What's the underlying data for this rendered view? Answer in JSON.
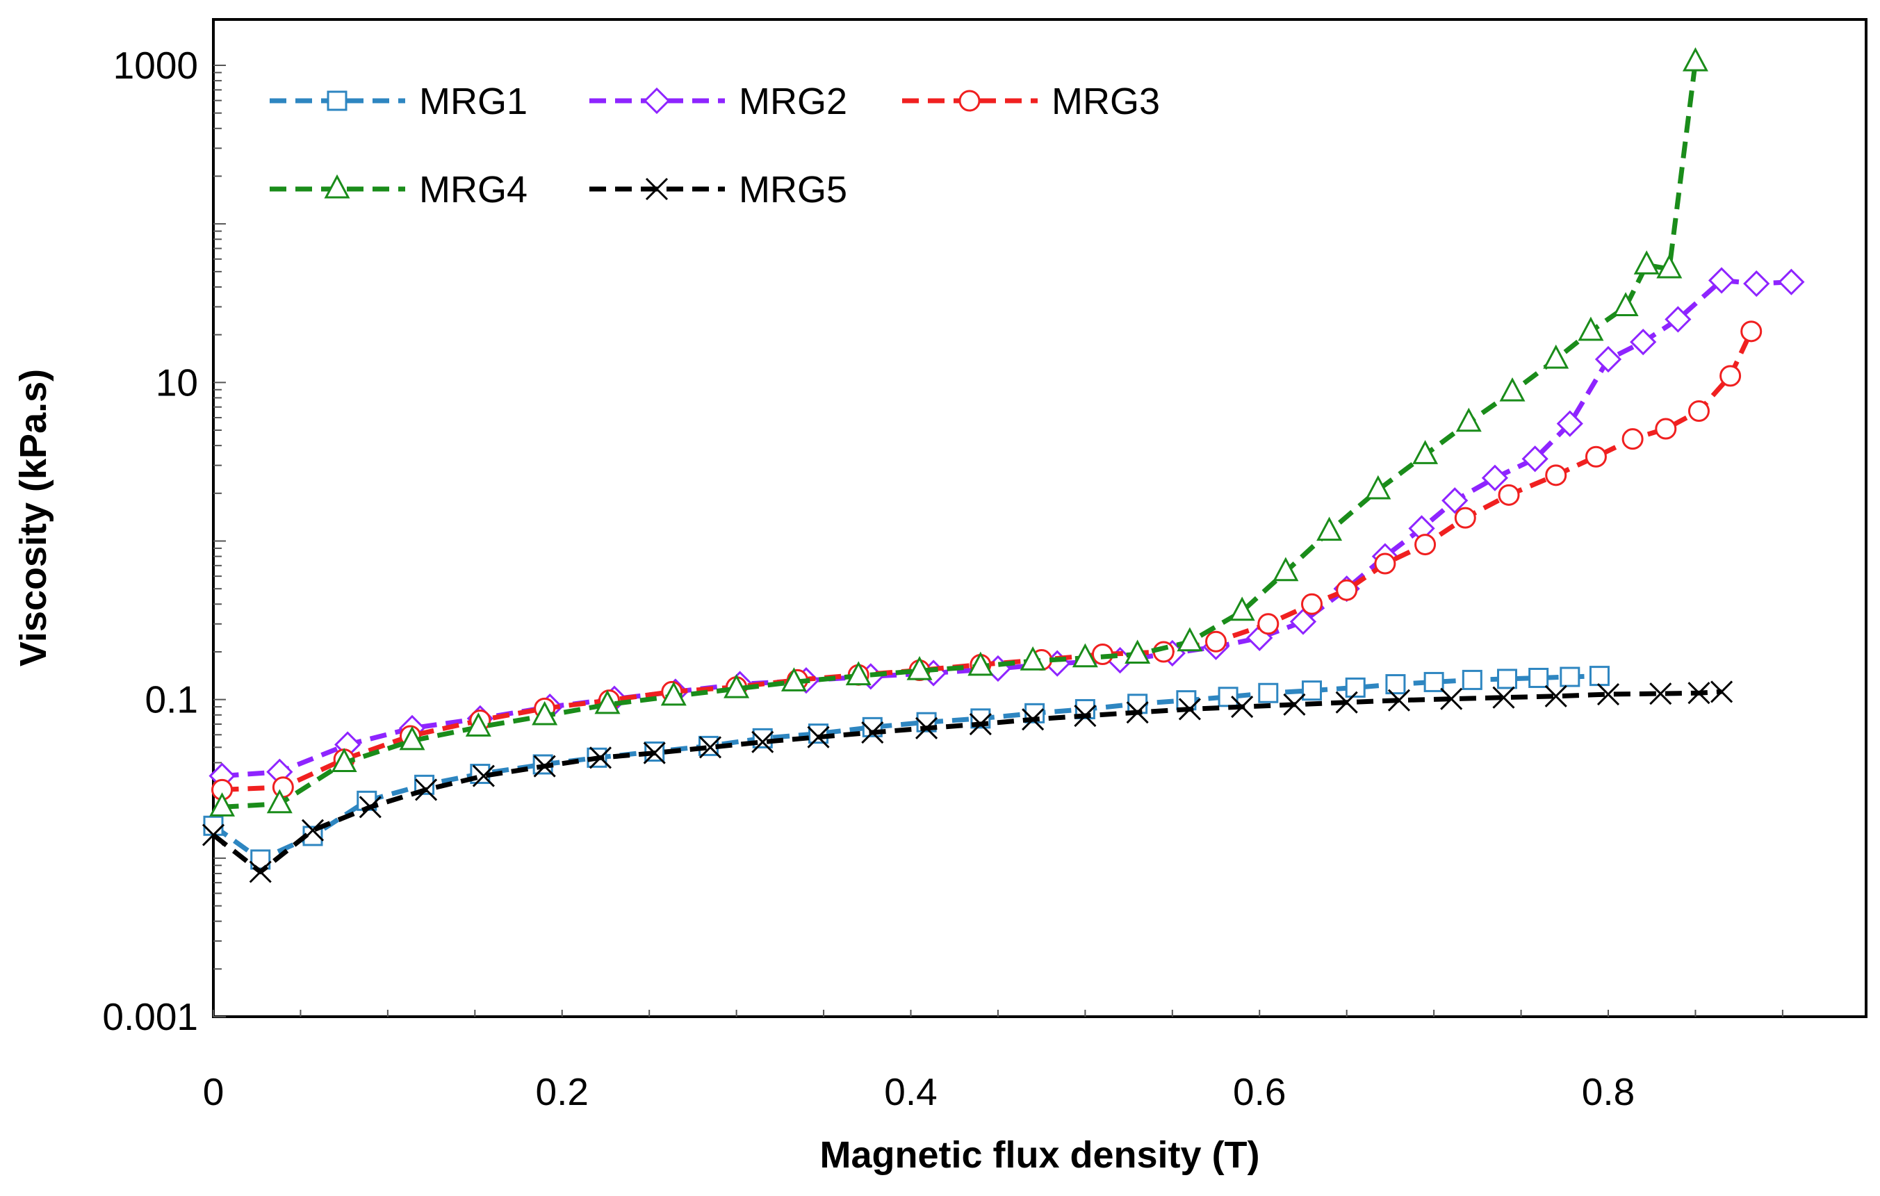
{
  "chart_data": {
    "type": "line",
    "title": "",
    "xlabel": "Magnetic flux density (T)",
    "ylabel": "Viscosity (kPa.s)",
    "xlim": [
      0,
      0.95
    ],
    "ylim": [
      0.001,
      1000
    ],
    "yscale": "log",
    "xticks": [
      0,
      0.2,
      0.4,
      0.6,
      0.8
    ],
    "xtick_labels": [
      "0",
      "0.2",
      "0.4",
      "0.6",
      "0.8"
    ],
    "yticks": [
      0.001,
      0.1,
      10,
      1000
    ],
    "ytick_labels": [
      "0.001",
      "0.1",
      "10",
      "1000"
    ],
    "legend_position": "top-left",
    "series": [
      {
        "name": "MRG1",
        "color": "#2E86C1",
        "marker": "square",
        "x": [
          0.0,
          0.027,
          0.057,
          0.088,
          0.121,
          0.153,
          0.189,
          0.22,
          0.253,
          0.284,
          0.315,
          0.347,
          0.378,
          0.409,
          0.44,
          0.471,
          0.5,
          0.53,
          0.558,
          0.582,
          0.605,
          0.63,
          0.655,
          0.678,
          0.7,
          0.722,
          0.742,
          0.76,
          0.778,
          0.795
        ],
        "y": [
          0.016,
          0.0098,
          0.0138,
          0.023,
          0.029,
          0.034,
          0.039,
          0.043,
          0.047,
          0.051,
          0.057,
          0.061,
          0.067,
          0.072,
          0.076,
          0.082,
          0.087,
          0.094,
          0.099,
          0.104,
          0.11,
          0.114,
          0.119,
          0.125,
          0.129,
          0.133,
          0.135,
          0.137,
          0.139,
          0.141
        ]
      },
      {
        "name": "MRG2",
        "color": "#8E24FF",
        "marker": "diamond",
        "x": [
          0.005,
          0.038,
          0.077,
          0.114,
          0.153,
          0.193,
          0.23,
          0.265,
          0.302,
          0.34,
          0.377,
          0.413,
          0.45,
          0.484,
          0.52,
          0.55,
          0.575,
          0.6,
          0.625,
          0.65,
          0.672,
          0.693,
          0.712,
          0.735,
          0.758,
          0.778,
          0.8,
          0.82,
          0.84,
          0.865,
          0.885,
          0.905
        ],
        "y": [
          0.033,
          0.035,
          0.052,
          0.066,
          0.076,
          0.09,
          0.101,
          0.112,
          0.125,
          0.132,
          0.14,
          0.147,
          0.157,
          0.169,
          0.177,
          0.196,
          0.215,
          0.245,
          0.31,
          0.5,
          0.8,
          1.2,
          1.8,
          2.5,
          3.3,
          5.5,
          14,
          18,
          25,
          44,
          42,
          43
        ]
      },
      {
        "name": "MRG3",
        "color": "#F02020",
        "marker": "circle",
        "x": [
          0.005,
          0.04,
          0.075,
          0.113,
          0.153,
          0.19,
          0.227,
          0.263,
          0.3,
          0.335,
          0.37,
          0.405,
          0.44,
          0.475,
          0.51,
          0.545,
          0.575,
          0.605,
          0.63,
          0.65,
          0.672,
          0.695,
          0.718,
          0.743,
          0.77,
          0.793,
          0.814,
          0.833,
          0.852,
          0.87,
          0.882
        ],
        "y": [
          0.027,
          0.028,
          0.042,
          0.059,
          0.074,
          0.088,
          0.099,
          0.112,
          0.12,
          0.133,
          0.143,
          0.153,
          0.166,
          0.178,
          0.193,
          0.2,
          0.232,
          0.3,
          0.4,
          0.49,
          0.72,
          0.95,
          1.4,
          1.95,
          2.6,
          3.4,
          4.4,
          5.1,
          6.6,
          11,
          21
        ]
      },
      {
        "name": "MRG4",
        "color": "#1A8C1A",
        "marker": "triangle",
        "x": [
          0.005,
          0.038,
          0.075,
          0.114,
          0.152,
          0.19,
          0.226,
          0.264,
          0.3,
          0.333,
          0.37,
          0.405,
          0.44,
          0.47,
          0.5,
          0.53,
          0.56,
          0.59,
          0.615,
          0.64,
          0.668,
          0.695,
          0.72,
          0.745,
          0.77,
          0.79,
          0.81,
          0.822,
          0.835,
          0.85
        ],
        "y": [
          0.021,
          0.022,
          0.04,
          0.055,
          0.067,
          0.079,
          0.093,
          0.105,
          0.117,
          0.129,
          0.141,
          0.152,
          0.162,
          0.175,
          0.183,
          0.193,
          0.231,
          0.36,
          0.64,
          1.15,
          2.1,
          3.5,
          5.6,
          8.7,
          14,
          21,
          30,
          55,
          52,
          1050
        ]
      },
      {
        "name": "MRG5",
        "color": "#000000",
        "marker": "x",
        "x": [
          0.0,
          0.027,
          0.057,
          0.09,
          0.122,
          0.155,
          0.19,
          0.222,
          0.253,
          0.285,
          0.315,
          0.347,
          0.378,
          0.409,
          0.44,
          0.47,
          0.5,
          0.53,
          0.56,
          0.59,
          0.62,
          0.65,
          0.68,
          0.71,
          0.74,
          0.77,
          0.8,
          0.83,
          0.852,
          0.865
        ],
        "y": [
          0.014,
          0.0082,
          0.015,
          0.021,
          0.027,
          0.033,
          0.038,
          0.043,
          0.046,
          0.05,
          0.054,
          0.058,
          0.062,
          0.066,
          0.07,
          0.075,
          0.079,
          0.083,
          0.087,
          0.09,
          0.093,
          0.096,
          0.099,
          0.101,
          0.103,
          0.105,
          0.108,
          0.109,
          0.11,
          0.112
        ]
      }
    ]
  }
}
